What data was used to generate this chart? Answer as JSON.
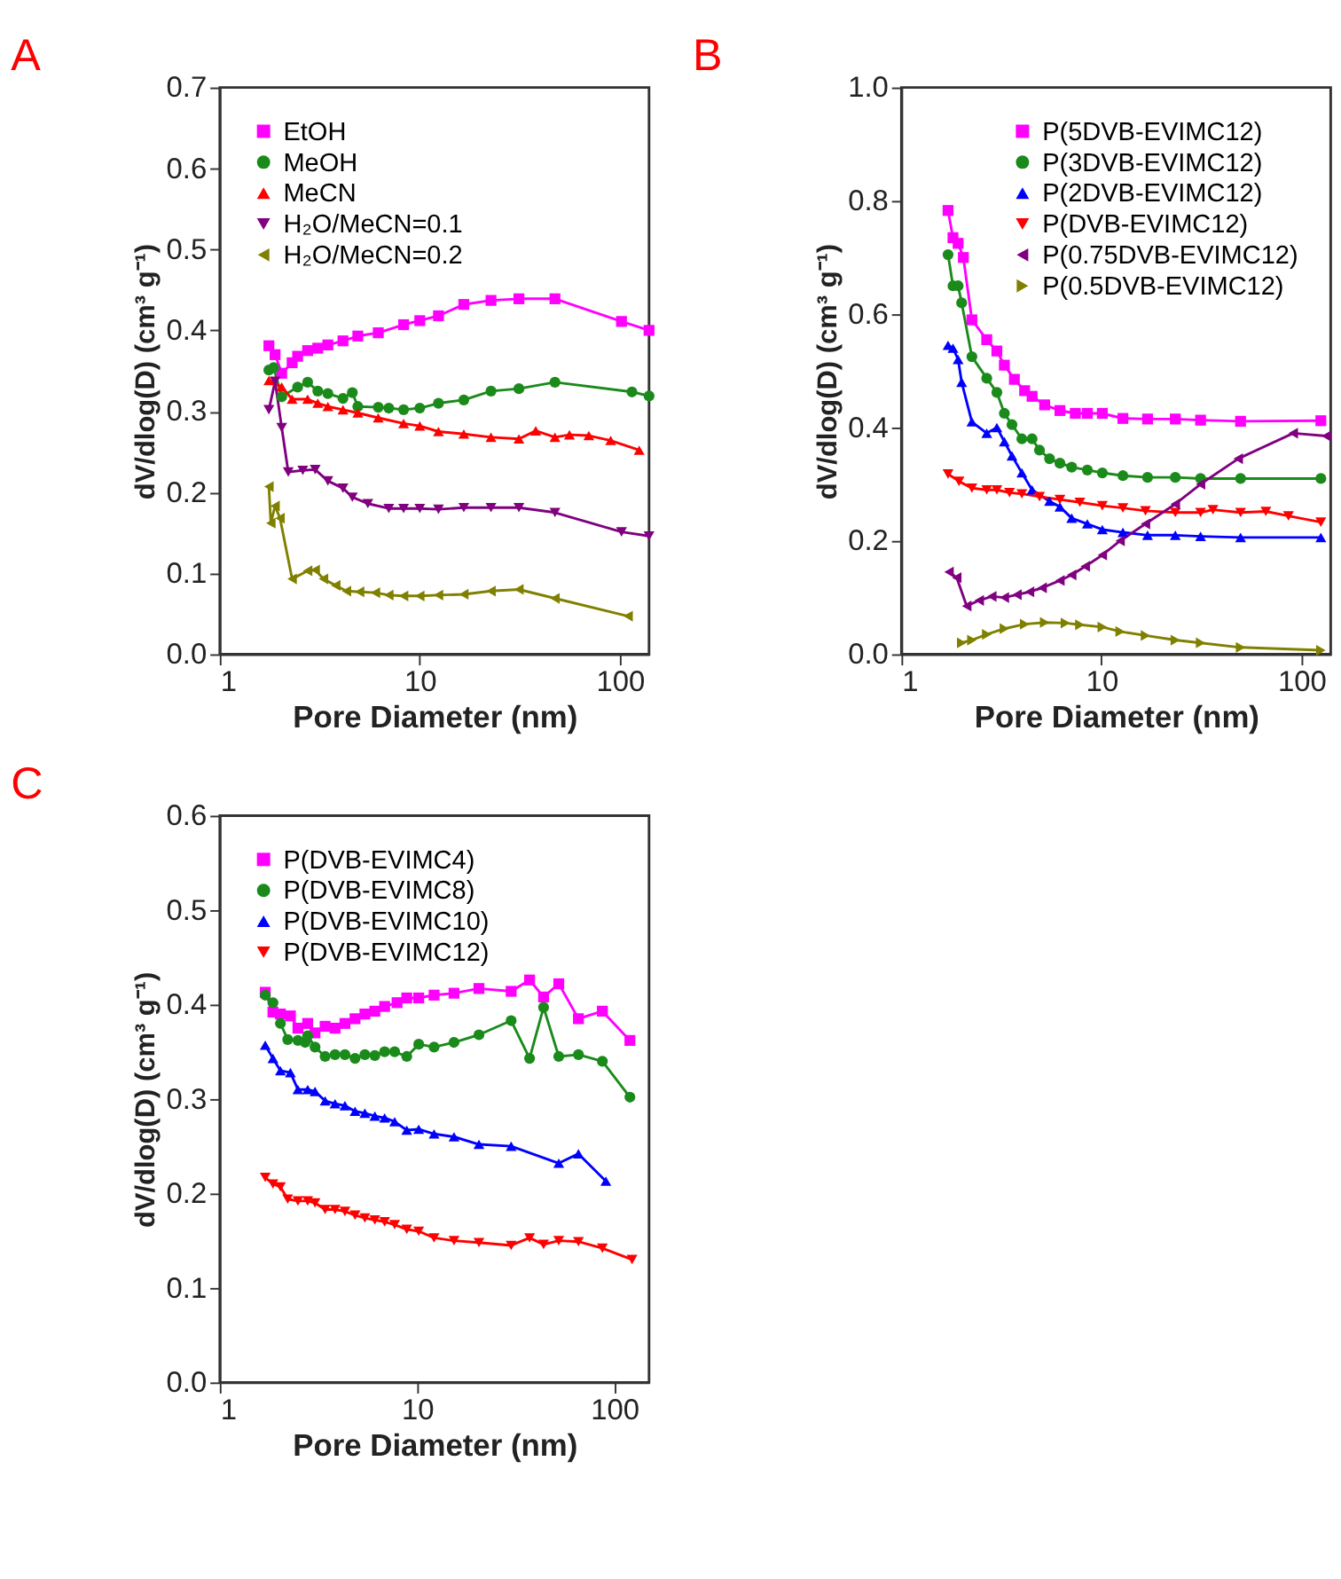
{
  "chart_data": [
    {
      "type": "line",
      "title": "A",
      "xlabel": "Pore Diameter (nm)",
      "ylabel": "dV/dlog(D) (cm³ g⁻¹)",
      "log": "x",
      "xlim": [
        1,
        140
      ],
      "xticks": [
        1,
        10,
        100
      ],
      "ylim": [
        0,
        0.7
      ],
      "yticks": [
        {
          "value": 0,
          "label": "0.0"
        },
        0.1,
        0.2,
        0.3,
        0.4,
        0.5,
        0.6,
        0.7
      ],
      "grid": false,
      "legend": "top left",
      "series": [
        {
          "name": "EtOH",
          "color": "#ff00ff",
          "marker": "square",
          "x": [
            1.76,
            1.89,
            2.04,
            2.3,
            2.45,
            2.75,
            3.09,
            3.47,
            4.13,
            4.9,
            6.2,
            8.3,
            10,
            12.4,
            16.6,
            22.7,
            31.3,
            47.4,
            102,
            140
          ],
          "values": [
            0.381,
            0.37,
            0.347,
            0.36,
            0.368,
            0.375,
            0.378,
            0.382,
            0.387,
            0.393,
            0.397,
            0.407,
            0.412,
            0.418,
            0.432,
            0.437,
            0.439,
            0.439,
            0.411,
            0.4
          ]
        },
        {
          "name": "MeOH",
          "color": "#1a8a1a",
          "marker": "circle",
          "x": [
            1.76,
            1.86,
            2.04,
            2.45,
            2.75,
            3.09,
            3.47,
            4.13,
            4.6,
            4.9,
            6.2,
            7,
            8.3,
            10,
            12.4,
            16.6,
            22.7,
            31.3,
            47.4,
            115,
            140
          ],
          "values": [
            0.351,
            0.354,
            0.318,
            0.33,
            0.336,
            0.325,
            0.322,
            0.316,
            0.323,
            0.306,
            0.305,
            0.304,
            0.302,
            0.304,
            0.31,
            0.314,
            0.325,
            0.328,
            0.336,
            0.324,
            0.319
          ]
        },
        {
          "name": "MeCN",
          "color": "#ff0000",
          "marker": "triangle",
          "x": [
            1.76,
            2.04,
            2.3,
            2.75,
            3.09,
            3.47,
            4.13,
            4.9,
            6.2,
            8.3,
            10,
            12.4,
            16.6,
            22.7,
            31.3,
            38,
            47.4,
            56,
            70,
            90,
            125
          ],
          "values": [
            0.338,
            0.33,
            0.315,
            0.315,
            0.31,
            0.306,
            0.302,
            0.298,
            0.292,
            0.285,
            0.282,
            0.275,
            0.272,
            0.268,
            0.266,
            0.276,
            0.268,
            0.271,
            0.27,
            0.264,
            0.252
          ]
        },
        {
          "name": "H₂O/MeCN=0.1",
          "color": "#800080",
          "marker": "triangle-down",
          "x": [
            1.76,
            1.89,
            2.04,
            2.2,
            2.6,
            3.0,
            3.47,
            4.13,
            4.6,
            5.5,
            7,
            8.3,
            10,
            12.4,
            16.6,
            22.7,
            31.3,
            47.4,
            102,
            140
          ],
          "values": [
            0.302,
            0.337,
            0.28,
            0.225,
            0.227,
            0.228,
            0.214,
            0.205,
            0.194,
            0.186,
            0.18,
            0.18,
            0.18,
            0.179,
            0.181,
            0.181,
            0.181,
            0.175,
            0.151,
            0.146
          ]
        },
        {
          "name": "H₂O/MeCN=0.2",
          "color": "#808000",
          "marker": "triangle-left",
          "x": [
            1.76,
            1.8,
            1.89,
            2.0,
            2.3,
            2.75,
            3.0,
            3.3,
            3.8,
            4.3,
            5,
            6,
            7,
            8.3,
            10,
            12.4,
            16.6,
            22.7,
            31.3,
            47.4,
            110
          ],
          "values": [
            0.207,
            0.162,
            0.183,
            0.168,
            0.093,
            0.103,
            0.104,
            0.093,
            0.085,
            0.078,
            0.077,
            0.076,
            0.073,
            0.072,
            0.072,
            0.073,
            0.074,
            0.078,
            0.08,
            0.069,
            0.047
          ]
        }
      ]
    },
    {
      "type": "line",
      "title": "B",
      "xlabel": "Pore Diameter (nm)",
      "ylabel": "dV/dlog(D) (cm³ g⁻¹)",
      "log": "x",
      "xlim": [
        1,
        140
      ],
      "xticks": [
        1,
        10,
        100
      ],
      "ylim": [
        0,
        1.0
      ],
      "yticks": [
        {
          "value": 0,
          "label": "0.0"
        },
        0.2,
        0.4,
        0.6,
        0.8,
        {
          "value": 1,
          "label": "1.0"
        }
      ],
      "grid": false,
      "legend": "top right",
      "series": [
        {
          "name": "P(5DVB-EVIMC12)",
          "color": "#ff00ff",
          "marker": "square",
          "x": [
            1.71,
            1.81,
            1.92,
            2.04,
            2.25,
            2.67,
            3.0,
            3.27,
            3.67,
            4.13,
            4.5,
            5.2,
            6.2,
            7.4,
            8.5,
            10.1,
            12.8,
            17.0,
            23.4,
            31.3,
            49.6,
            125
          ],
          "values": [
            0.783,
            0.735,
            0.725,
            0.7,
            0.59,
            0.555,
            0.535,
            0.51,
            0.485,
            0.465,
            0.455,
            0.44,
            0.43,
            0.425,
            0.425,
            0.425,
            0.416,
            0.415,
            0.415,
            0.413,
            0.411,
            0.412
          ]
        },
        {
          "name": "P(3DVB-EVIMC12)",
          "color": "#1a8a1a",
          "marker": "circle",
          "x": [
            1.71,
            1.81,
            1.92,
            2.0,
            2.25,
            2.67,
            3.0,
            3.27,
            3.57,
            4.0,
            4.5,
            4.9,
            5.5,
            6.2,
            7.1,
            8.5,
            10.1,
            12.8,
            17.0,
            23.4,
            31.3,
            49.6,
            125
          ],
          "values": [
            0.705,
            0.65,
            0.65,
            0.62,
            0.525,
            0.487,
            0.462,
            0.425,
            0.405,
            0.38,
            0.38,
            0.36,
            0.345,
            0.337,
            0.33,
            0.325,
            0.32,
            0.315,
            0.312,
            0.312,
            0.31,
            0.31,
            0.31
          ]
        },
        {
          "name": "P(2DVB-EVIMC12)",
          "color": "#0000ff",
          "marker": "triangle",
          "x": [
            1.71,
            1.81,
            1.92,
            2.0,
            2.25,
            2.67,
            3.0,
            3.27,
            3.57,
            4.0,
            4.5,
            5.5,
            6.2,
            7.1,
            8.5,
            10.1,
            12.8,
            17.0,
            23.4,
            31.3,
            49.6,
            125
          ],
          "values": [
            0.545,
            0.54,
            0.52,
            0.48,
            0.41,
            0.39,
            0.4,
            0.375,
            0.35,
            0.32,
            0.29,
            0.27,
            0.26,
            0.24,
            0.23,
            0.22,
            0.215,
            0.21,
            0.21,
            0.208,
            0.206,
            0.206
          ]
        },
        {
          "name": "P(DVB-EVIMC12)",
          "color": "#ff0000",
          "marker": "triangle-down",
          "x": [
            1.71,
            1.94,
            2.25,
            2.67,
            3.0,
            3.47,
            4.0,
            4.9,
            6.2,
            7.8,
            10.1,
            12.8,
            16.6,
            23.4,
            31.3,
            36.1,
            49.6,
            66.4,
            86.1,
            125
          ],
          "values": [
            0.318,
            0.305,
            0.293,
            0.29,
            0.29,
            0.285,
            0.283,
            0.278,
            0.273,
            0.268,
            0.262,
            0.258,
            0.253,
            0.25,
            0.25,
            0.255,
            0.25,
            0.252,
            0.244,
            0.233
          ]
        },
        {
          "name": "P(0.75DVB-EVIMC12)",
          "color": "#800080",
          "marker": "triangle-left",
          "x": [
            1.73,
            1.89,
            2.12,
            2.45,
            2.83,
            3.27,
            3.78,
            4.37,
            5.05,
            6.2,
            7.1,
            8.3,
            10.1,
            12.4,
            16.6,
            23.4,
            31.3,
            48.3,
            91,
            133
          ],
          "values": [
            0.145,
            0.135,
            0.085,
            0.095,
            0.102,
            0.1,
            0.105,
            0.11,
            0.117,
            0.13,
            0.14,
            0.155,
            0.175,
            0.2,
            0.23,
            0.265,
            0.3,
            0.345,
            0.39,
            0.385
          ]
        },
        {
          "name": "P(0.5DVB-EVIMC12)",
          "color": "#808000",
          "marker": "triangle-right",
          "x": [
            2.0,
            2.25,
            2.67,
            3.27,
            4.13,
            5.2,
            6.6,
            7.8,
            10.1,
            12.4,
            16.6,
            23.4,
            31.3,
            49.6,
            125
          ],
          "values": [
            0.02,
            0.025,
            0.035,
            0.045,
            0.053,
            0.056,
            0.055,
            0.052,
            0.048,
            0.04,
            0.033,
            0.025,
            0.02,
            0.012,
            0.007
          ]
        }
      ]
    },
    {
      "type": "line",
      "title": "C",
      "xlabel": "Pore Diameter (nm)",
      "ylabel": "dV/dlog(D) (cm³ g⁻¹)",
      "log": "x",
      "xlim": [
        1,
        150
      ],
      "xticks": [
        1,
        10,
        100
      ],
      "ylim": [
        0,
        0.6
      ],
      "yticks": [
        {
          "value": 0,
          "label": "0.0"
        },
        0.1,
        0.2,
        0.3,
        0.4,
        0.5,
        0.6
      ],
      "grid": false,
      "legend": "top left",
      "series": [
        {
          "name": "P(DVB-EVIMC4)",
          "color": "#ff00ff",
          "marker": "square",
          "x": [
            1.7,
            1.86,
            2.03,
            2.28,
            2.49,
            2.79,
            3.04,
            3.42,
            3.84,
            4.31,
            4.85,
            5.44,
            6.11,
            6.85,
            7.92,
            8.87,
            10.2,
            12.2,
            15.4,
            20.6,
            30.0,
            37.2,
            43.8,
            52.3,
            65.8,
            87,
            120
          ],
          "values": [
            0.413,
            0.392,
            0.39,
            0.388,
            0.375,
            0.38,
            0.37,
            0.377,
            0.375,
            0.38,
            0.385,
            0.39,
            0.393,
            0.398,
            0.402,
            0.407,
            0.407,
            0.41,
            0.412,
            0.417,
            0.414,
            0.426,
            0.408,
            0.422,
            0.385,
            0.393,
            0.362
          ]
        },
        {
          "name": "P(DVB-EVIMC8)",
          "color": "#1a8a1a",
          "marker": "circle",
          "x": [
            1.7,
            1.86,
            2.03,
            2.21,
            2.49,
            2.71,
            2.79,
            3.04,
            3.42,
            3.84,
            4.31,
            4.85,
            5.44,
            6.11,
            6.85,
            7.7,
            8.87,
            10.2,
            12.2,
            15.4,
            20.6,
            30.0,
            37.2,
            43.8,
            52.3,
            65.8,
            87,
            120
          ],
          "values": [
            0.41,
            0.402,
            0.38,
            0.363,
            0.362,
            0.36,
            0.367,
            0.355,
            0.345,
            0.347,
            0.347,
            0.343,
            0.347,
            0.346,
            0.35,
            0.35,
            0.345,
            0.358,
            0.355,
            0.36,
            0.368,
            0.383,
            0.343,
            0.397,
            0.345,
            0.347,
            0.34,
            0.302
          ]
        },
        {
          "name": "P(DVB-EVIMC10)",
          "color": "#0000ff",
          "marker": "triangle",
          "x": [
            1.7,
            1.86,
            2.03,
            2.28,
            2.49,
            2.79,
            3.04,
            3.42,
            3.84,
            4.31,
            4.85,
            5.44,
            6.11,
            6.85,
            7.7,
            8.87,
            10.2,
            12.2,
            15.4,
            20.6,
            30.0,
            52.3,
            65.8,
            90.6
          ],
          "values": [
            0.357,
            0.343,
            0.33,
            0.328,
            0.31,
            0.31,
            0.308,
            0.298,
            0.295,
            0.293,
            0.287,
            0.285,
            0.282,
            0.28,
            0.276,
            0.267,
            0.268,
            0.263,
            0.26,
            0.252,
            0.25,
            0.232,
            0.242,
            0.213
          ]
        },
        {
          "name": "P(DVB-EVIMC12)",
          "color": "#ff0000",
          "marker": "triangle-down",
          "x": [
            1.7,
            1.86,
            2.03,
            2.21,
            2.49,
            2.79,
            3.04,
            3.42,
            3.84,
            4.31,
            4.85,
            5.44,
            6.11,
            6.85,
            7.7,
            8.87,
            10.2,
            12.2,
            15.4,
            20.6,
            30.0,
            37.2,
            43.8,
            52.3,
            65.8,
            87,
            123
          ],
          "values": [
            0.217,
            0.21,
            0.207,
            0.194,
            0.192,
            0.192,
            0.19,
            0.183,
            0.183,
            0.181,
            0.177,
            0.174,
            0.172,
            0.17,
            0.167,
            0.162,
            0.16,
            0.153,
            0.15,
            0.148,
            0.145,
            0.153,
            0.146,
            0.15,
            0.149,
            0.142,
            0.13
          ]
        }
      ]
    }
  ]
}
